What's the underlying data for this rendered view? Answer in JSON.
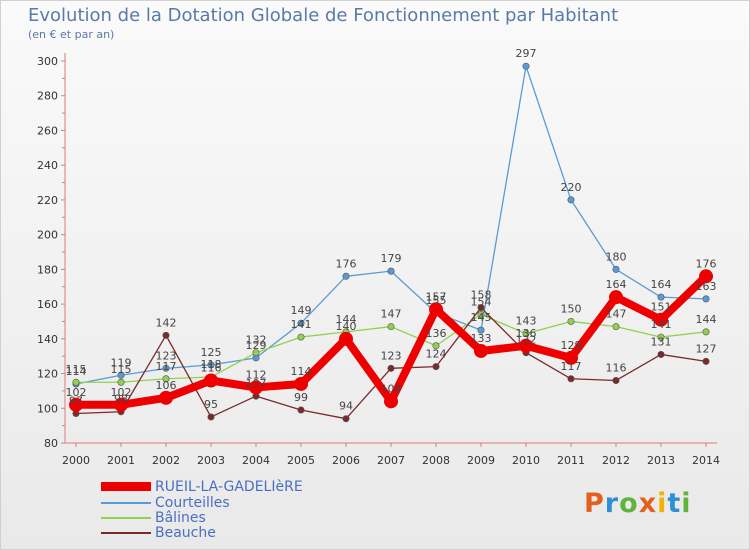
{
  "page": {
    "title": "Evolution de la Dotation Globale de Fonctionnement par Habitant",
    "subtitle": "(en € et par an)"
  },
  "logo": {
    "text": "Proxiti",
    "colors": [
      "#e35f1c",
      "#2d8fd4",
      "#5fb43c",
      "#e35f1c",
      "#f0b400",
      "#2d8fd4",
      "#5fb43c"
    ]
  },
  "chart_data": {
    "type": "line",
    "x": [
      2000,
      2001,
      2002,
      2003,
      2004,
      2005,
      2006,
      2007,
      2008,
      2009,
      2010,
      2011,
      2012,
      2013,
      2014
    ],
    "ylim": [
      80,
      300
    ],
    "yticks": [
      80,
      100,
      120,
      140,
      160,
      180,
      200,
      220,
      240,
      260,
      280,
      300
    ],
    "grid": false,
    "legend_position": "bottom-left",
    "series": [
      {
        "name": "RUEIL-LA-GADELIèRE",
        "color": "#ee0000",
        "width": 8,
        "values": [
          102,
          102,
          106,
          116,
          112,
          114,
          140,
          104,
          157,
          133,
          136,
          129,
          164,
          151,
          176
        ]
      },
      {
        "name": "Courteilles",
        "color": "#5b9bd5",
        "width": 1,
        "values": [
          114,
          119,
          123,
          125,
          129,
          149,
          176,
          179,
          155,
          145,
          297,
          220,
          180,
          164,
          163
        ]
      },
      {
        "name": "Bâlines",
        "color": "#92d050",
        "width": 1,
        "values": [
          115,
          115,
          117,
          118,
          132,
          141,
          144,
          147,
          136,
          154,
          143,
          150,
          147,
          141,
          144
        ]
      },
      {
        "name": "Beauche",
        "color": "#7b2a2a",
        "width": 1,
        "values": [
          97,
          98,
          142,
          95,
          107,
          99,
          94,
          123,
          124,
          158,
          132,
          117,
          116,
          131,
          127
        ]
      }
    ]
  }
}
